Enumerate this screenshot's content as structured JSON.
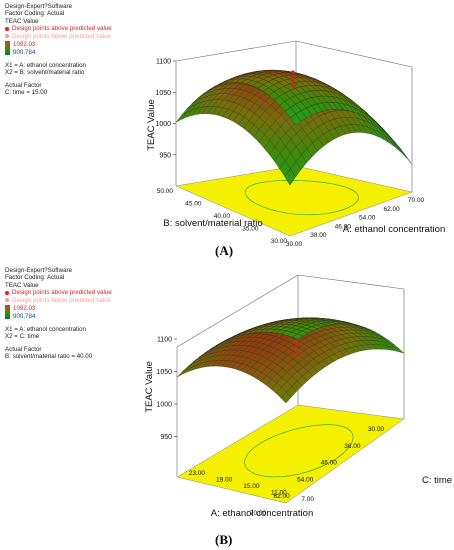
{
  "chart_data": [
    {
      "type": "surface3d",
      "panel_label": "(A)",
      "legend": {
        "software": "Design-Expert?Software",
        "coding": "Factor Coding: Actual",
        "response": "TEAC Value",
        "above": "Design points above predicted value",
        "below": "Design points below predicted value",
        "range_high": "1092.03",
        "range_low": "900.784",
        "x1": "X1 = A: ethanol concentration",
        "x2": "X2 = B: solvent/material ratio",
        "actual_factor_title": "Actual Factor",
        "actual_factor": "C: time = 15.00"
      },
      "zlabel": "TEAC Value",
      "xlabel": "A: ethanol concentration",
      "ylabel": "B: solvent/material ratio",
      "z_ticks": [
        "950",
        "1000",
        "1050",
        "1100"
      ],
      "x_ticks": [
        "30.00",
        "38.00",
        "46.00",
        "54.00",
        "62.00",
        "70.00"
      ],
      "y_ticks": [
        "30.00",
        "35.00",
        "40.00",
        "45.00",
        "50.00"
      ],
      "zlim": [
        900,
        1100
      ]
    },
    {
      "type": "surface3d",
      "panel_label": "(B)",
      "legend": {
        "software": "Design-Expert?Software",
        "coding": "Factor Coding: Actual",
        "response": "TEAC Value",
        "above": "Design points above predicted value",
        "below": "Design points below predicted value",
        "range_high": "1092.03",
        "range_low": "900.784",
        "x1": "X1 = A: ethanol concentration",
        "x2": "X2 = C: time",
        "actual_factor_title": "Actual Factor",
        "actual_factor": "B: solvent/material ratio = 40.00"
      },
      "zlabel": "TEAC Value",
      "xlabel": "A: ethanol concentration",
      "ylabel": "C: time",
      "z_ticks": [
        "950",
        "1000",
        "1050",
        "1100"
      ],
      "x_ticks": [
        "70.00",
        "62.00",
        "54.00",
        "46.00",
        "38.00",
        "30.00"
      ],
      "y_ticks": [
        "7.00",
        "11.00",
        "15.00",
        "19.00",
        "23.00"
      ],
      "zlim": [
        900,
        1100
      ]
    }
  ]
}
